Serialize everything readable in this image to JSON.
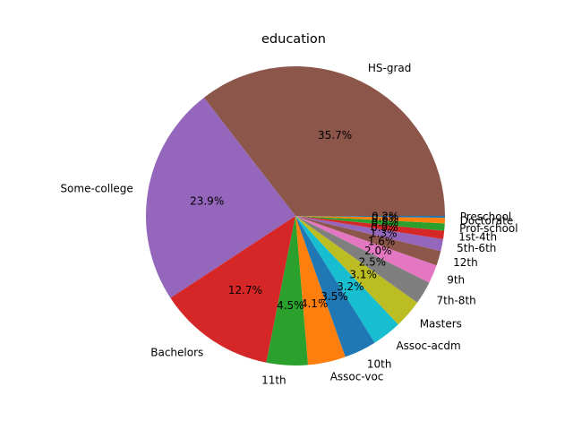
{
  "chart_data": {
    "type": "pie",
    "title": "education",
    "slices": [
      {
        "label": "HS-grad",
        "value": 35.7,
        "pct_label": "35.7%",
        "color": "#8c564b"
      },
      {
        "label": "Some-college",
        "value": 23.9,
        "pct_label": "23.9%",
        "color": "#9467bd"
      },
      {
        "label": "Bachelors",
        "value": 12.7,
        "pct_label": "12.7%",
        "color": "#d62728"
      },
      {
        "label": "11th",
        "value": 4.5,
        "pct_label": "4.5%",
        "color": "#2ca02c"
      },
      {
        "label": "Assoc-voc",
        "value": 4.1,
        "pct_label": "4.1%",
        "color": "#ff7f0e"
      },
      {
        "label": "10th",
        "value": 3.5,
        "pct_label": "3.5%",
        "color": "#1f77b4"
      },
      {
        "label": "Assoc-acdm",
        "value": 3.2,
        "pct_label": "3.2%",
        "color": "#17becf"
      },
      {
        "label": "Masters",
        "value": 3.1,
        "pct_label": "3.1%",
        "color": "#bcbd22"
      },
      {
        "label": "7th-8th",
        "value": 2.5,
        "pct_label": "2.5%",
        "color": "#7f7f7f"
      },
      {
        "label": "9th",
        "value": 2.0,
        "pct_label": "2.0%",
        "color": "#e377c2"
      },
      {
        "label": "12th",
        "value": 1.6,
        "pct_label": "1.6%",
        "color": "#8c564b"
      },
      {
        "label": "5th-6th",
        "value": 1.3,
        "pct_label": "1.3%",
        "color": "#9467bd"
      },
      {
        "label": "1st-4th",
        "value": 0.9,
        "pct_label": "0.9%",
        "color": "#d62728"
      },
      {
        "label": "Prof-school",
        "value": 0.8,
        "pct_label": "0.8%",
        "color": "#2ca02c"
      },
      {
        "label": "Doctorate",
        "value": 0.6,
        "pct_label": "0.6%",
        "color": "#ff7f0e"
      },
      {
        "label": "Preschool",
        "value": 0.2,
        "pct_label": "0.2%",
        "color": "#1f77b4"
      }
    ]
  }
}
